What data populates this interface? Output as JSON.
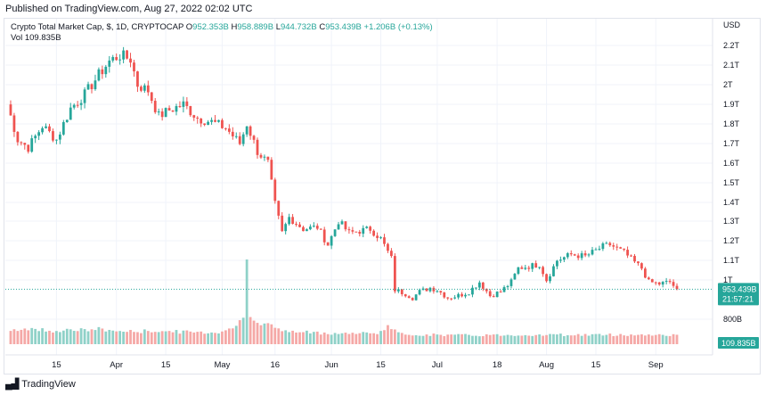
{
  "header": {
    "published": "Published on TradingView.com, Aug 27, 2022 02:02 UTC"
  },
  "legend": {
    "title": "Crypto Total Market Cap, $, 1D, CRYPTOCAP",
    "o_label": "O",
    "o_value": "952.353B",
    "h_label": "H",
    "h_value": "958.889B",
    "l_label": "L",
    "l_value": "944.732B",
    "c_label": "C",
    "c_value": "953.439B",
    "change": "+1.206B (+0.13%)",
    "vol_label": "Vol",
    "vol_value": "109.835B"
  },
  "footer": {
    "brand": "TradingView"
  },
  "colors": {
    "up": "#26a69a",
    "down": "#ef5350",
    "up_vol": "#8fd1c8",
    "down_vol": "#f5a8a6"
  },
  "chart_data": {
    "type": "candlestick",
    "currency": "USD",
    "y_ticks": [
      "2.2T",
      "2.1T",
      "2T",
      "1.9T",
      "1.8T",
      "1.7T",
      "1.6T",
      "1.5T",
      "1.4T",
      "1.3T",
      "1.2T",
      "1.1T",
      "1T",
      "800B"
    ],
    "y_tick_values": [
      2200,
      2100,
      2000,
      1900,
      1800,
      1700,
      1600,
      1500,
      1400,
      1300,
      1200,
      1100,
      1000,
      800
    ],
    "x_ticks": [
      "15",
      "Apr",
      "15",
      "May",
      "16",
      "Jun",
      "15",
      "Jul",
      "18",
      "Aug",
      "15",
      "Sep"
    ],
    "x_tick_days": [
      14,
      31,
      45,
      61,
      76,
      92,
      106,
      122,
      139,
      153,
      167,
      184
    ],
    "last_price": "953.439B",
    "countdown": "21:57:21",
    "last_volume": "109.835B",
    "ylim": [
      720,
      2250
    ],
    "anchors": [
      [
        0,
        1900
      ],
      [
        3,
        1720
      ],
      [
        6,
        1680
      ],
      [
        10,
        1790
      ],
      [
        14,
        1720
      ],
      [
        18,
        1880
      ],
      [
        22,
        1950
      ],
      [
        26,
        2050
      ],
      [
        29,
        2120
      ],
      [
        32,
        2150
      ],
      [
        35,
        2130
      ],
      [
        37,
        2000
      ],
      [
        40,
        1970
      ],
      [
        43,
        1840
      ],
      [
        46,
        1870
      ],
      [
        50,
        1900
      ],
      [
        54,
        1830
      ],
      [
        58,
        1810
      ],
      [
        62,
        1780
      ],
      [
        66,
        1700
      ],
      [
        68,
        1800
      ],
      [
        71,
        1660
      ],
      [
        74,
        1600
      ],
      [
        76,
        1390
      ],
      [
        78,
        1240
      ],
      [
        80,
        1320
      ],
      [
        84,
        1260
      ],
      [
        88,
        1270
      ],
      [
        91,
        1180
      ],
      [
        94,
        1300
      ],
      [
        97,
        1240
      ],
      [
        100,
        1250
      ],
      [
        103,
        1260
      ],
      [
        106,
        1210
      ],
      [
        109,
        1110
      ],
      [
        110,
        950
      ],
      [
        113,
        930
      ],
      [
        115,
        910
      ],
      [
        117,
        940
      ],
      [
        120,
        960
      ],
      [
        122,
        950
      ],
      [
        125,
        910
      ],
      [
        128,
        920
      ],
      [
        131,
        940
      ],
      [
        134,
        990
      ],
      [
        137,
        920
      ],
      [
        140,
        940
      ],
      [
        143,
        990
      ],
      [
        145,
        1060
      ],
      [
        148,
        1070
      ],
      [
        151,
        1080
      ],
      [
        153,
        1000
      ],
      [
        156,
        1100
      ],
      [
        160,
        1130
      ],
      [
        164,
        1120
      ],
      [
        166,
        1140
      ],
      [
        169,
        1170
      ],
      [
        171,
        1180
      ],
      [
        175,
        1140
      ],
      [
        178,
        1090
      ],
      [
        180,
        1060
      ],
      [
        182,
        990
      ],
      [
        185,
        980
      ],
      [
        188,
        990
      ],
      [
        190,
        953
      ]
    ],
    "volume_profile": [
      [
        0,
        30
      ],
      [
        5,
        35
      ],
      [
        10,
        32
      ],
      [
        14,
        30
      ],
      [
        18,
        33
      ],
      [
        22,
        31
      ],
      [
        26,
        34
      ],
      [
        30,
        30
      ],
      [
        36,
        28
      ],
      [
        42,
        30
      ],
      [
        48,
        28
      ],
      [
        54,
        27
      ],
      [
        58,
        26
      ],
      [
        60,
        27
      ],
      [
        62,
        33
      ],
      [
        64,
        37
      ],
      [
        66,
        52
      ],
      [
        68,
        55
      ],
      [
        70,
        60
      ],
      [
        72,
        50
      ],
      [
        74,
        48
      ],
      [
        76,
        34
      ],
      [
        80,
        28
      ],
      [
        90,
        25
      ],
      [
        100,
        24
      ],
      [
        106,
        27
      ],
      [
        108,
        42
      ],
      [
        110,
        30
      ],
      [
        112,
        22
      ],
      [
        130,
        20
      ],
      [
        150,
        21
      ],
      [
        170,
        21
      ],
      [
        190,
        21
      ]
    ],
    "volume_spike": {
      "day": 68,
      "value": 190
    }
  }
}
